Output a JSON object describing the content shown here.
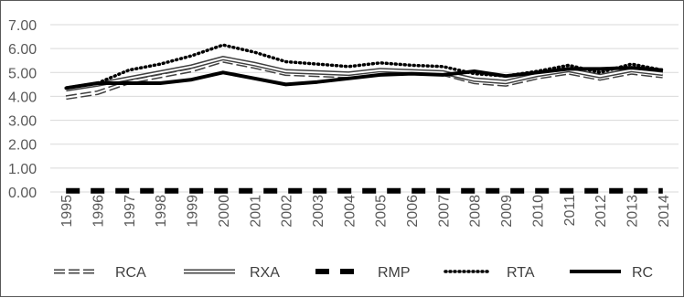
{
  "chart_data": {
    "type": "line",
    "title": "",
    "xlabel": "",
    "ylabel": "",
    "ylim": [
      0,
      7
    ],
    "y_ticks": [
      "0.00",
      "1.00",
      "2.00",
      "3.00",
      "4.00",
      "5.00",
      "6.00",
      "7.00"
    ],
    "grid": true,
    "legend_position": "bottom",
    "categories": [
      "1995",
      "1996",
      "1997",
      "1998",
      "1999",
      "2000",
      "2001",
      "2002",
      "2003",
      "2004",
      "2005",
      "2006",
      "2007",
      "2008",
      "2009",
      "2010",
      "2011",
      "2012",
      "2013",
      "2014"
    ],
    "series": [
      {
        "name": "RCA",
        "style": "dashed-double",
        "values": [
          3.95,
          4.15,
          4.6,
          4.85,
          5.1,
          5.5,
          5.25,
          4.95,
          4.9,
          4.85,
          5.0,
          5.0,
          4.95,
          4.6,
          4.5,
          4.8,
          5.0,
          4.75,
          5.0,
          4.85
        ]
      },
      {
        "name": "RXA",
        "style": "solid-double",
        "values": [
          4.3,
          4.5,
          4.75,
          5.0,
          5.25,
          5.6,
          5.35,
          5.05,
          5.0,
          4.95,
          5.1,
          5.05,
          5.0,
          4.7,
          4.6,
          4.9,
          5.1,
          4.85,
          5.1,
          4.95
        ]
      },
      {
        "name": "RMP",
        "style": "thick-dashed",
        "values": [
          0.05,
          0.05,
          0.05,
          0.05,
          0.05,
          0.05,
          0.05,
          0.05,
          0.05,
          0.05,
          0.05,
          0.05,
          0.05,
          0.05,
          0.05,
          0.05,
          0.05,
          0.05,
          0.05,
          0.05
        ]
      },
      {
        "name": "RTA",
        "style": "dotted",
        "values": [
          4.35,
          4.55,
          5.1,
          5.35,
          5.7,
          6.15,
          5.85,
          5.45,
          5.35,
          5.25,
          5.4,
          5.3,
          5.25,
          4.95,
          4.85,
          5.05,
          5.3,
          5.0,
          5.35,
          5.1
        ]
      },
      {
        "name": "RC",
        "style": "thick-solid",
        "values": [
          4.35,
          4.55,
          4.55,
          4.55,
          4.7,
          5.0,
          4.75,
          4.5,
          4.6,
          4.75,
          4.9,
          4.95,
          4.9,
          5.05,
          4.85,
          5.0,
          5.15,
          5.15,
          5.2,
          5.1
        ]
      }
    ]
  }
}
